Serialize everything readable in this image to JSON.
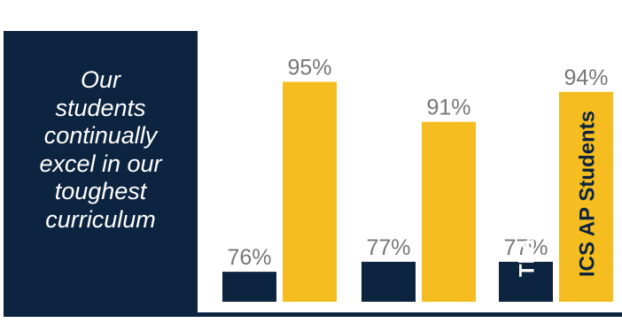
{
  "tagline": [
    "Our",
    "students",
    "continually",
    "excel in our",
    "toughest",
    "curriculum"
  ],
  "colors": {
    "navy": "#0d2440",
    "gold": "#f5bd1f",
    "value_text": "#777777",
    "background": "#ffffff"
  },
  "chart_data": {
    "type": "bar",
    "categories": [
      "",
      "",
      ""
    ],
    "series": [
      {
        "name": "Thailand",
        "values": [
          76,
          77,
          77
        ],
        "color": "#0d2440",
        "labels": [
          "76%",
          "77%",
          "77%"
        ]
      },
      {
        "name": "ICS AP Students",
        "values": [
          95,
          91,
          94
        ],
        "color": "#f5bd1f",
        "labels": [
          "95%",
          "91%",
          "94%"
        ]
      }
    ],
    "title": "",
    "xlabel": "",
    "ylabel": "",
    "ylim": [
      0,
      100
    ],
    "grid": false,
    "legend": "inside-last-group-vertical"
  }
}
